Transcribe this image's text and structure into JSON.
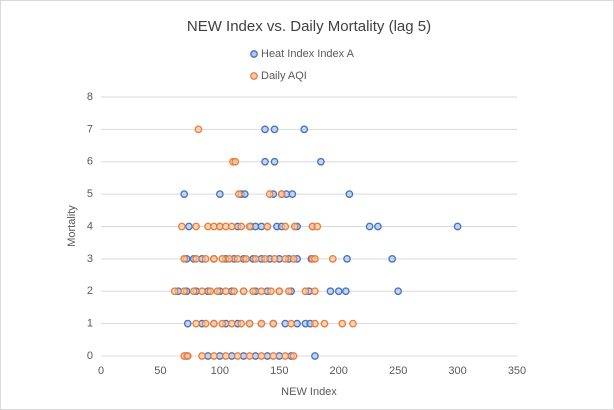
{
  "chart_data": {
    "type": "scatter",
    "title": "NEW Index vs. Daily Mortality (lag 5)",
    "x_label": "NEW Index",
    "y_label": "Mortality",
    "xlim": [
      0,
      350
    ],
    "xticks": [
      0,
      50,
      100,
      150,
      200,
      250,
      300,
      350
    ],
    "ylim": [
      0,
      8
    ],
    "yticks": [
      0,
      1,
      2,
      3,
      4,
      5,
      6,
      7,
      8
    ],
    "grid": true,
    "legend": "top",
    "series": [
      {
        "name": "Heat Index Index A",
        "color": "#4472c4",
        "x": [
          138,
          146,
          171,
          138,
          146,
          185,
          70,
          100,
          118,
          121,
          145,
          152,
          156,
          161,
          209,
          74,
          100,
          115,
          126,
          130,
          135,
          140,
          148,
          152,
          165,
          178,
          226,
          233,
          300,
          72,
          78,
          85,
          95,
          105,
          112,
          120,
          128,
          135,
          142,
          150,
          158,
          165,
          177,
          207,
          245,
          65,
          72,
          80,
          90,
          100,
          110,
          120,
          130,
          140,
          150,
          160,
          175,
          193,
          200,
          206,
          250,
          73,
          85,
          95,
          105,
          115,
          125,
          135,
          145,
          155,
          165,
          172,
          176,
          72,
          90,
          100,
          110,
          120,
          130,
          140,
          150,
          160,
          180
        ],
        "y": [
          7,
          7,
          7,
          6,
          6,
          6,
          5,
          5,
          5,
          5,
          5,
          5,
          5,
          5,
          5,
          4,
          4,
          4,
          4,
          4,
          4,
          4,
          4,
          4,
          4,
          4,
          4,
          4,
          4,
          3,
          3,
          3,
          3,
          3,
          3,
          3,
          3,
          3,
          3,
          3,
          3,
          3,
          3,
          3,
          3,
          2,
          2,
          2,
          2,
          2,
          2,
          2,
          2,
          2,
          2,
          2,
          2,
          2,
          2,
          2,
          2,
          1,
          1,
          1,
          1,
          1,
          1,
          1,
          1,
          1,
          1,
          1,
          1,
          0,
          0,
          0,
          0,
          0,
          0,
          0,
          0,
          0,
          0
        ]
      },
      {
        "name": "Daily AQI",
        "color": "#ed7d31",
        "x": [
          82,
          111,
          113,
          116,
          142,
          152,
          68,
          80,
          90,
          95,
          100,
          105,
          110,
          118,
          125,
          140,
          155,
          163,
          178,
          182,
          70,
          80,
          88,
          95,
          102,
          108,
          115,
          122,
          130,
          138,
          146,
          155,
          162,
          178,
          180,
          195,
          62,
          70,
          78,
          85,
          92,
          98,
          105,
          112,
          120,
          128,
          135,
          143,
          150,
          158,
          172,
          180,
          80,
          88,
          95,
          102,
          110,
          118,
          125,
          135,
          145,
          160,
          180,
          188,
          203,
          212,
          70,
          73,
          85,
          95,
          105,
          115,
          125,
          135,
          145,
          155,
          162
        ],
        "y": [
          7,
          6,
          6,
          5,
          5,
          5,
          4,
          4,
          4,
          4,
          4,
          4,
          4,
          4,
          4,
          4,
          4,
          4,
          4,
          4,
          3,
          3,
          3,
          3,
          3,
          3,
          3,
          3,
          3,
          3,
          3,
          3,
          3,
          3,
          3,
          3,
          2,
          2,
          2,
          2,
          2,
          2,
          2,
          2,
          2,
          2,
          2,
          2,
          2,
          2,
          2,
          2,
          1,
          1,
          1,
          1,
          1,
          1,
          1,
          1,
          1,
          1,
          1,
          1,
          1,
          1,
          0,
          0,
          0,
          0,
          0,
          0,
          0,
          0,
          0,
          0,
          0
        ]
      }
    ]
  }
}
